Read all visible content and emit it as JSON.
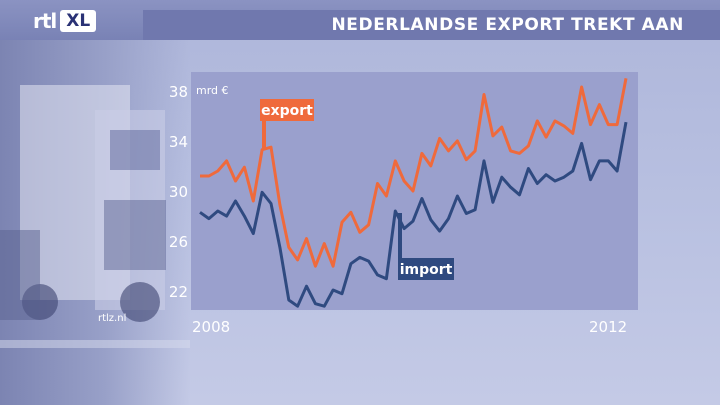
{
  "header": {
    "logo_text": "rtl",
    "logo_badge": "XL",
    "title": "NEDERLANDSE EXPORT TREKT AAN"
  },
  "watermark": "rtlz.nl",
  "colors": {
    "export": "#ef6a3c",
    "import": "#2f4a80",
    "label_export_bg": "#ef6a3c",
    "label_import_bg": "#2f4a80",
    "title_bar": "#7078ae",
    "plot_bg": "#9aa0cd"
  },
  "chart_data": {
    "type": "line",
    "title": "NEDERLANDSE EXPORT TREKT AAN",
    "ylabel": "mrd €",
    "xlabel": "",
    "ylim": [
      20.5,
      39.5
    ],
    "yticks": [
      22,
      26,
      30,
      34,
      38
    ],
    "x_start_label": "2008",
    "x_end_label": "2012",
    "grid": false,
    "series": [
      {
        "name": "export",
        "color": "#ef6a3c",
        "values": [
          31.2,
          31.2,
          31.6,
          32.4,
          30.8,
          31.9,
          29.2,
          33.3,
          33.5,
          28.9,
          25.5,
          24.5,
          26.2,
          24.0,
          25.8,
          24.0,
          27.5,
          28.3,
          26.7,
          27.3,
          30.6,
          29.6,
          32.4,
          30.8,
          30.0,
          33.0,
          32.0,
          34.2,
          33.2,
          34.0,
          32.5,
          33.2,
          37.7,
          34.4,
          35.1,
          33.2,
          33.0,
          33.6,
          35.6,
          34.3,
          35.6,
          35.2,
          34.6,
          38.3,
          35.3,
          36.9,
          35.3,
          35.3,
          39.0
        ]
      },
      {
        "name": "import",
        "color": "#2f4a80",
        "values": [
          28.3,
          27.8,
          28.4,
          28.0,
          29.2,
          28.0,
          26.6,
          29.9,
          29.0,
          25.5,
          21.3,
          20.8,
          22.4,
          21.0,
          20.8,
          22.1,
          21.8,
          24.2,
          24.7,
          24.4,
          23.3,
          23.0,
          28.4,
          27.0,
          27.6,
          29.4,
          27.7,
          26.8,
          27.8,
          29.6,
          28.2,
          28.5,
          32.4,
          29.1,
          31.1,
          30.3,
          29.7,
          31.8,
          30.6,
          31.3,
          30.8,
          31.1,
          31.6,
          33.8,
          30.9,
          32.4,
          32.4,
          31.6,
          35.5
        ]
      }
    ],
    "annotations": [
      {
        "text": "export",
        "series": "export"
      },
      {
        "text": "import",
        "series": "import"
      }
    ]
  }
}
